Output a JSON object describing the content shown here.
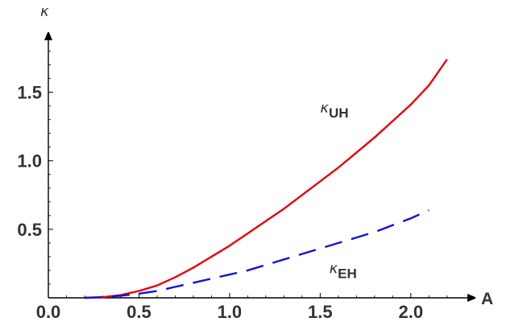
{
  "chart_data": {
    "type": "line",
    "xlabel": "A",
    "ylabel": "κ",
    "xlim": [
      0.0,
      2.25
    ],
    "ylim": [
      0.0,
      1.95
    ],
    "x_ticks": [
      {
        "value": 0.0,
        "label": "0.0"
      },
      {
        "value": 0.5,
        "label": "0.5"
      },
      {
        "value": 1.0,
        "label": "1.0"
      },
      {
        "value": 1.5,
        "label": "1.5"
      },
      {
        "value": 2.0,
        "label": "2.0"
      }
    ],
    "y_ticks": [
      {
        "value": 0.5,
        "label": "0.5"
      },
      {
        "value": 1.0,
        "label": "1.0"
      },
      {
        "value": 1.5,
        "label": "1.5"
      }
    ],
    "grid": false,
    "series": [
      {
        "name": "κUH",
        "label_symbol": "κ",
        "label_subscript": "UH",
        "label_at": {
          "x": 1.5,
          "y": 1.35
        },
        "color": "#e8000b",
        "style": "solid",
        "x": [
          0.2,
          0.3,
          0.4,
          0.5,
          0.6,
          0.7,
          0.8,
          0.9,
          1.0,
          1.1,
          1.2,
          1.3,
          1.4,
          1.5,
          1.6,
          1.7,
          1.8,
          1.9,
          2.0,
          2.1,
          2.2
        ],
        "y": [
          0.0,
          0.005,
          0.02,
          0.05,
          0.09,
          0.15,
          0.22,
          0.3,
          0.38,
          0.47,
          0.56,
          0.65,
          0.75,
          0.85,
          0.95,
          1.06,
          1.17,
          1.29,
          1.41,
          1.55,
          1.74
        ]
      },
      {
        "name": "κEH",
        "label_symbol": "κ",
        "label_subscript": "EH",
        "label_at": {
          "x": 1.55,
          "y": 0.18
        },
        "color": "#1010e0",
        "style": "dashed",
        "x": [
          0.2,
          0.3,
          0.4,
          0.5,
          0.6,
          0.7,
          0.8,
          0.9,
          1.0,
          1.1,
          1.2,
          1.3,
          1.4,
          1.5,
          1.6,
          1.7,
          1.8,
          1.9,
          2.0,
          2.1
        ],
        "y": [
          0.0,
          0.005,
          0.015,
          0.03,
          0.05,
          0.08,
          0.11,
          0.14,
          0.17,
          0.2,
          0.24,
          0.28,
          0.32,
          0.36,
          0.4,
          0.44,
          0.48,
          0.53,
          0.58,
          0.64
        ]
      }
    ]
  }
}
